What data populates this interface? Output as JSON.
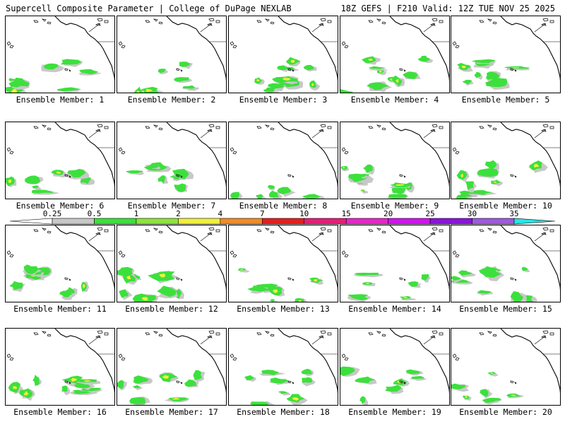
{
  "header": {
    "left_title": "Supercell Composite Parameter | College of DuPage NEXLAB",
    "right_title": "18Z GEFS | F210 Valid: 12Z TUE NOV 25 2025"
  },
  "panels": [
    {
      "label": "Ensemble Member: 1"
    },
    {
      "label": "Ensemble Member: 2"
    },
    {
      "label": "Ensemble Member: 3"
    },
    {
      "label": "Ensemble Member: 4"
    },
    {
      "label": "Ensemble Member: 5"
    },
    {
      "label": "Ensemble Member: 6"
    },
    {
      "label": "Ensemble Member: 7"
    },
    {
      "label": "Ensemble Member: 8"
    },
    {
      "label": "Ensemble Member: 9"
    },
    {
      "label": "Ensemble Member: 10"
    },
    {
      "label": "Ensemble Member: 11"
    },
    {
      "label": "Ensemble Member: 12"
    },
    {
      "label": "Ensemble Member: 13"
    },
    {
      "label": "Ensemble Member: 14"
    },
    {
      "label": "Ensemble Member: 15"
    },
    {
      "label": "Ensemble Member: 16"
    },
    {
      "label": "Ensemble Member: 17"
    },
    {
      "label": "Ensemble Member: 18"
    },
    {
      "label": "Ensemble Member: 19"
    },
    {
      "label": "Ensemble Member: 20"
    }
  ],
  "colorbar": {
    "labels": [
      "0.25",
      "0.5",
      "1",
      "2",
      "4",
      "7",
      "10",
      "15",
      "20",
      "25",
      "30",
      "35"
    ],
    "colors": [
      "#c8c8c8",
      "#3ce03c",
      "#8ce63c",
      "#f0f03c",
      "#f08c28",
      "#e61e1e",
      "#e61e78",
      "#e628c8",
      "#d214f0",
      "#8c14dc",
      "#a05adc",
      "#28e6e6"
    ]
  },
  "colors": {
    "land_outline": "#000000",
    "shading_low": "#c8c8c8",
    "shading_mid": "#3ce03c",
    "shading_high": "#f0f03c"
  }
}
